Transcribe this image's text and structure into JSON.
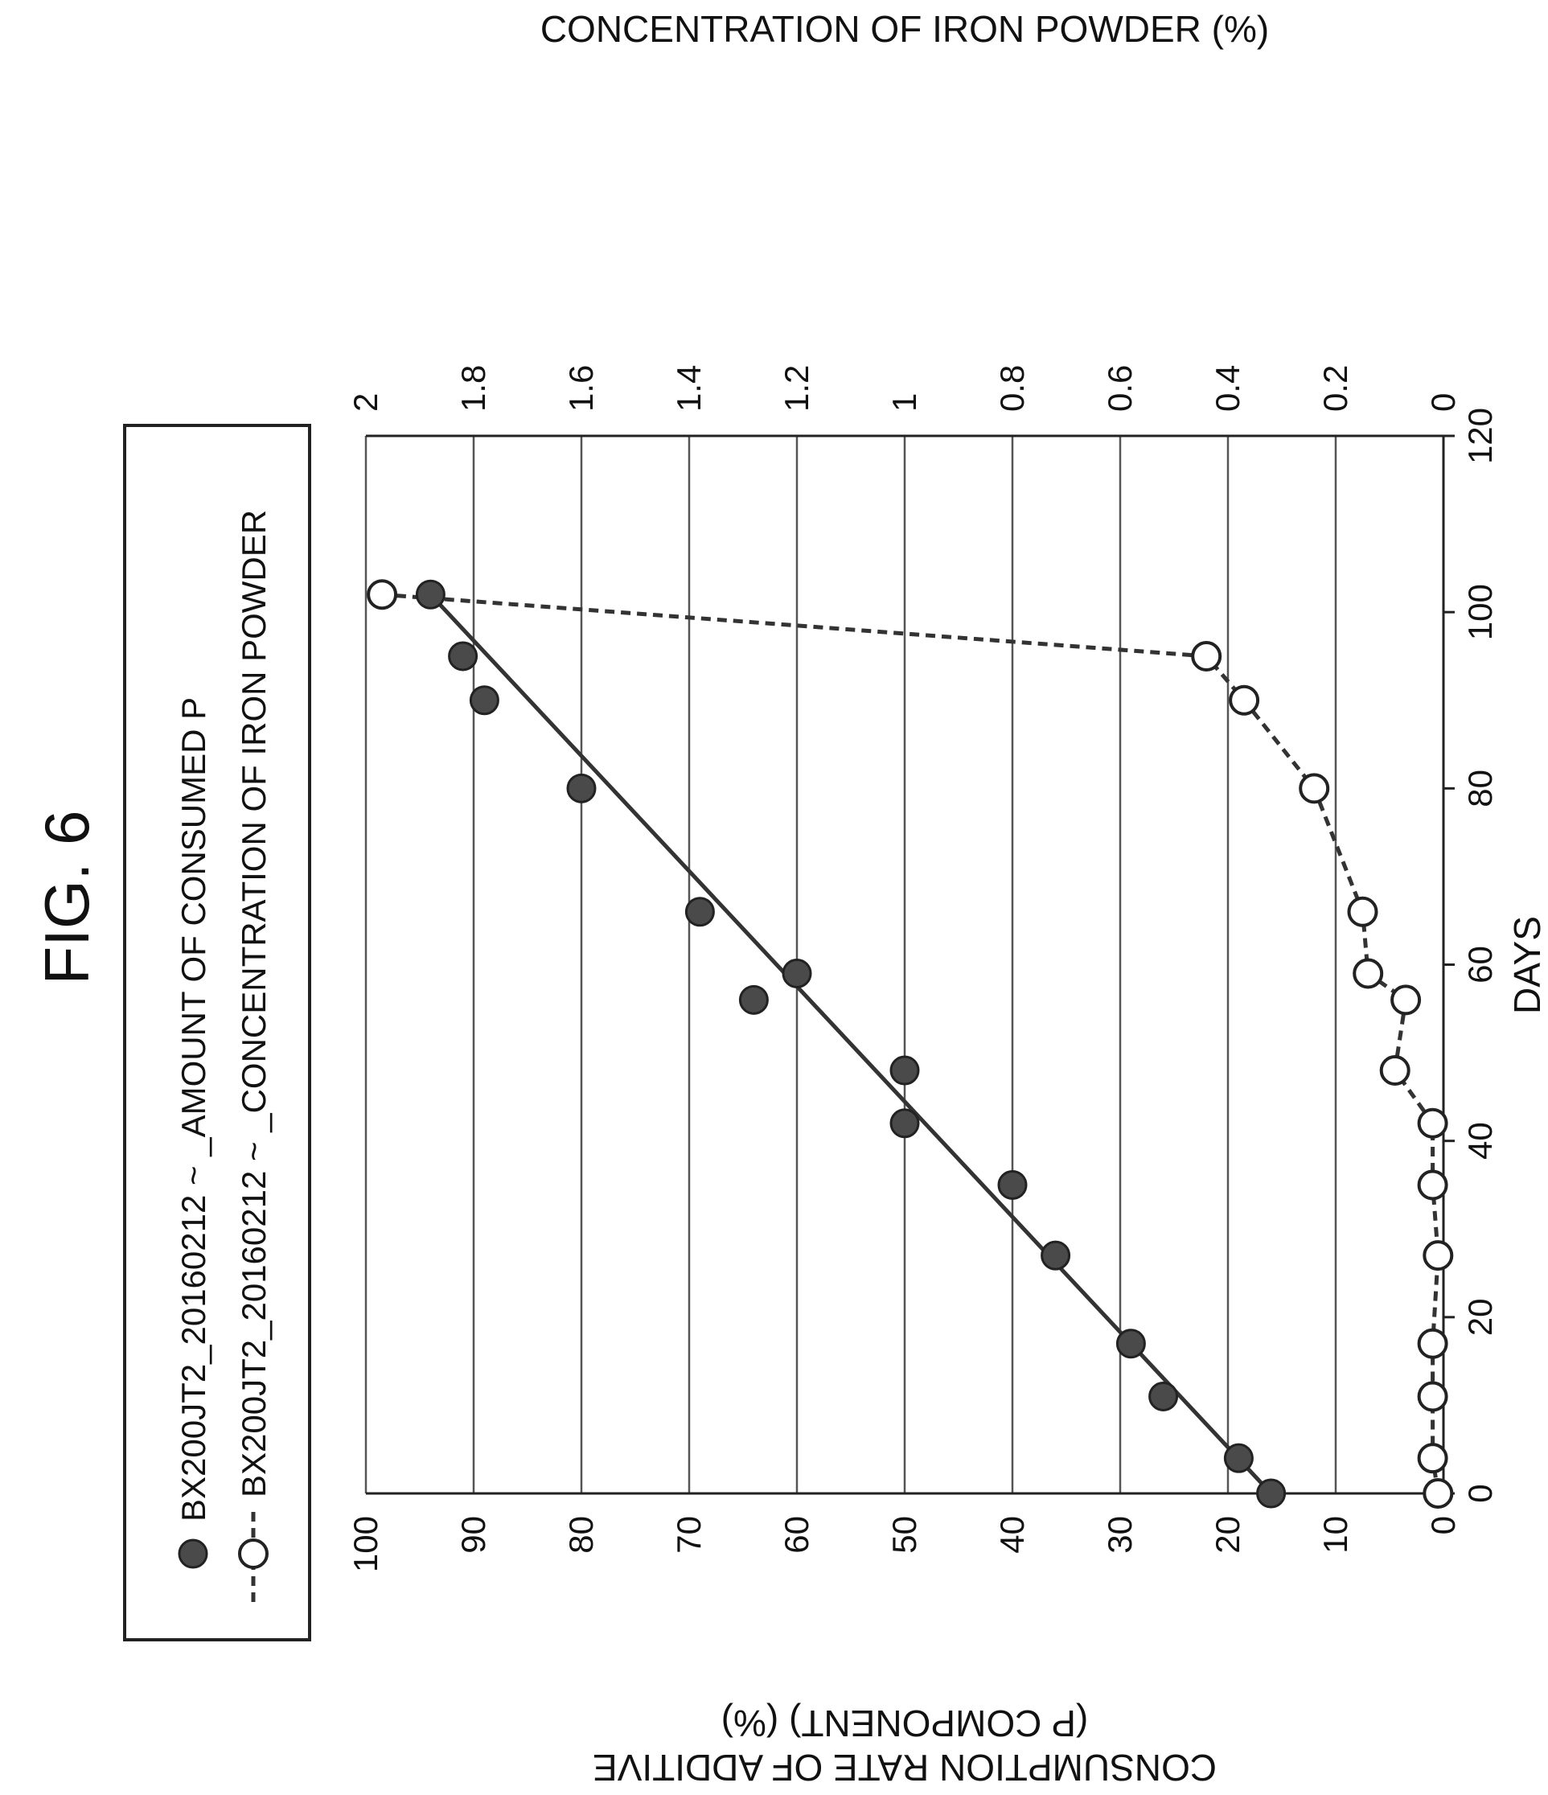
{
  "figure_title": "FIG. 6",
  "legend": {
    "items": [
      {
        "label": "BX200JT2_20160212 ~ _AMOUNT OF CONSUMED P",
        "marker": "filled-circle"
      },
      {
        "label": "BX200JT2_20160212 ~ _CONCENTRATION OF IRON POWDER",
        "marker": "open-circle-dashed-line"
      }
    ]
  },
  "colors": {
    "filled_marker": "#4a4a4a",
    "line": "#333333",
    "grid": "#555555",
    "background": "#ffffff"
  },
  "chart_data": {
    "type": "scatter",
    "orientation": "rotated 90 degrees counter-clockwise",
    "xlabel": "DAYS",
    "ylabel_left": [
      "CONSUMPTION RATE OF ADDITIVE",
      "(P COMPONENT) (%)"
    ],
    "ylabel_right": "CONCENTRATION OF IRON POWDER (%)",
    "xlim": [
      0,
      120
    ],
    "ylim_left": [
      0,
      100
    ],
    "ylim_right": [
      0,
      2
    ],
    "x_ticks": [
      "0",
      "20",
      "40",
      "60",
      "80",
      "100",
      "120"
    ],
    "y_left_ticks": [
      "0",
      "10",
      "20",
      "30",
      "40",
      "50",
      "60",
      "70",
      "80",
      "90",
      "100"
    ],
    "y_right_ticks": [
      "0",
      "0.2",
      "0.4",
      "0.6",
      "0.8",
      "1",
      "1.2",
      "1.4",
      "1.6",
      "1.8",
      "2"
    ],
    "grid": "horizontal lines at right-axis ticks",
    "series": [
      {
        "name": "BX200JT2_20160212 ~ _AMOUNT OF CONSUMED P",
        "axis": "left",
        "marker": "filled-circle",
        "points": [
          [
            0,
            16
          ],
          [
            4,
            19
          ],
          [
            11,
            26
          ],
          [
            17,
            29
          ],
          [
            27,
            36
          ],
          [
            35,
            40
          ],
          [
            42,
            50
          ],
          [
            48,
            50
          ],
          [
            56,
            64
          ],
          [
            59,
            60
          ],
          [
            66,
            69
          ],
          [
            80,
            80
          ],
          [
            90,
            89
          ],
          [
            95,
            91
          ],
          [
            102,
            94
          ]
        ],
        "trend_line": [
          [
            0,
            16
          ],
          [
            102,
            94
          ]
        ]
      },
      {
        "name": "BX200JT2_20160212 ~ _CONCENTRATION OF IRON POWDER",
        "axis": "right",
        "marker": "open-circle",
        "line": "dashed",
        "points": [
          [
            0,
            0.01
          ],
          [
            4,
            0.02
          ],
          [
            11,
            0.02
          ],
          [
            17,
            0.02
          ],
          [
            27,
            0.01
          ],
          [
            35,
            0.02
          ],
          [
            42,
            0.02
          ],
          [
            48,
            0.09
          ],
          [
            56,
            0.07
          ],
          [
            59,
            0.14
          ],
          [
            66,
            0.15
          ],
          [
            80,
            0.24
          ],
          [
            90,
            0.37
          ],
          [
            95,
            0.44
          ],
          [
            102,
            1.97
          ]
        ]
      }
    ]
  }
}
